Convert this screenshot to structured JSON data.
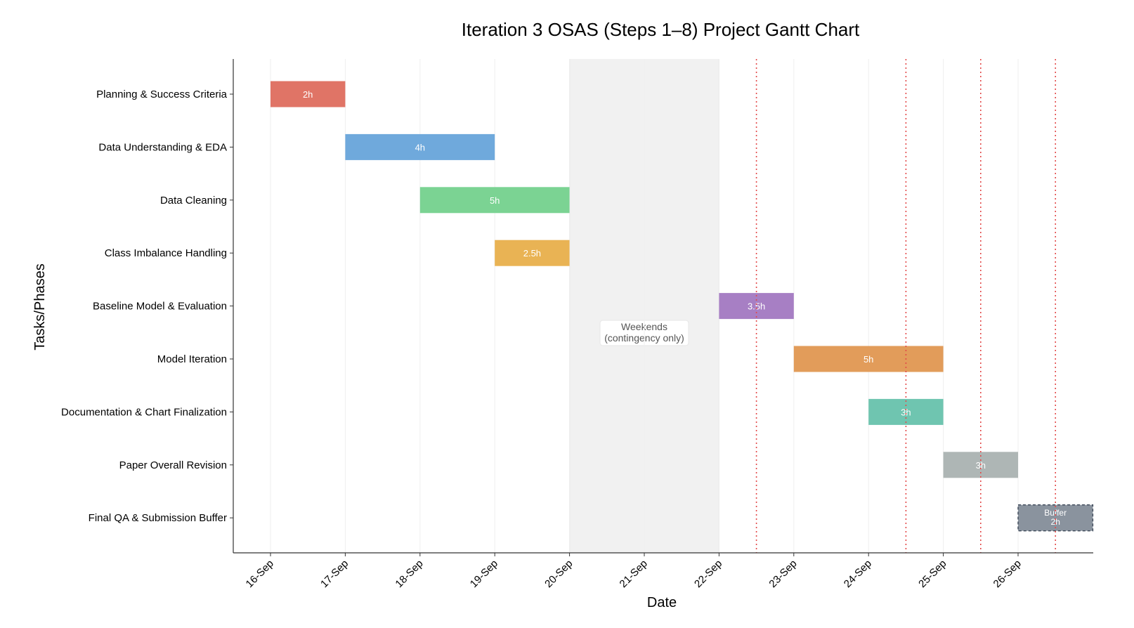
{
  "chart_data": {
    "type": "gantt",
    "title": "Iteration 3 OSAS (Steps 1–8) Project Gantt Chart",
    "xlabel": "Date",
    "ylabel": "Tasks/Phases",
    "x_ticks": [
      "16-Sep",
      "17-Sep",
      "18-Sep",
      "19-Sep",
      "20-Sep",
      "21-Sep",
      "22-Sep",
      "23-Sep",
      "24-Sep",
      "25-Sep",
      "26-Sep"
    ],
    "xlim": [
      "16-Sep 00:00",
      "27-Sep 00:00"
    ],
    "tasks": [
      {
        "name": "Planning & Success Criteria",
        "start": "16-Sep",
        "end": "17-Sep",
        "label": "2h",
        "color": "#e07466"
      },
      {
        "name": "Data Understanding & EDA",
        "start": "17-Sep",
        "end": "19-Sep",
        "label": "4h",
        "color": "#6fa9dc"
      },
      {
        "name": "Data Cleaning",
        "start": "18-Sep",
        "end": "20-Sep",
        "label": "5h",
        "color": "#7bd393"
      },
      {
        "name": "Class Imbalance Handling",
        "start": "19-Sep",
        "end": "20-Sep",
        "label": "2.5h",
        "color": "#e9b354"
      },
      {
        "name": "Baseline Model & Evaluation",
        "start": "22-Sep",
        "end": "23-Sep",
        "label": "3.5h",
        "color": "#a77fc4"
      },
      {
        "name": "Model Iteration",
        "start": "23-Sep",
        "end": "25-Sep",
        "label": "5h",
        "color": "#e29c5a"
      },
      {
        "name": "Documentation & Chart Finalization",
        "start": "24-Sep",
        "end": "25-Sep",
        "label": "3h",
        "color": "#6fc5b0"
      },
      {
        "name": "Paper Overall Revision",
        "start": "25-Sep",
        "end": "26-Sep",
        "label": "3h",
        "color": "#aeb6b5"
      },
      {
        "name": "Final QA & Submission Buffer",
        "start": "26-Sep",
        "end": "27-Sep",
        "label": "Buffer\n2h",
        "color": "#8a939e",
        "dashed_border": true
      }
    ],
    "shaded_region": {
      "start": "20-Sep",
      "end": "22-Sep",
      "label": "Weekends\n(contingency only)",
      "color": "#f1f1f1"
    },
    "vertical_markers": {
      "dates": [
        "22-Sep 12:00",
        "24-Sep 12:00",
        "25-Sep 12:00",
        "26-Sep 12:00"
      ],
      "color": "#e34a4a",
      "style": "dotted"
    },
    "grid": "vertical"
  }
}
